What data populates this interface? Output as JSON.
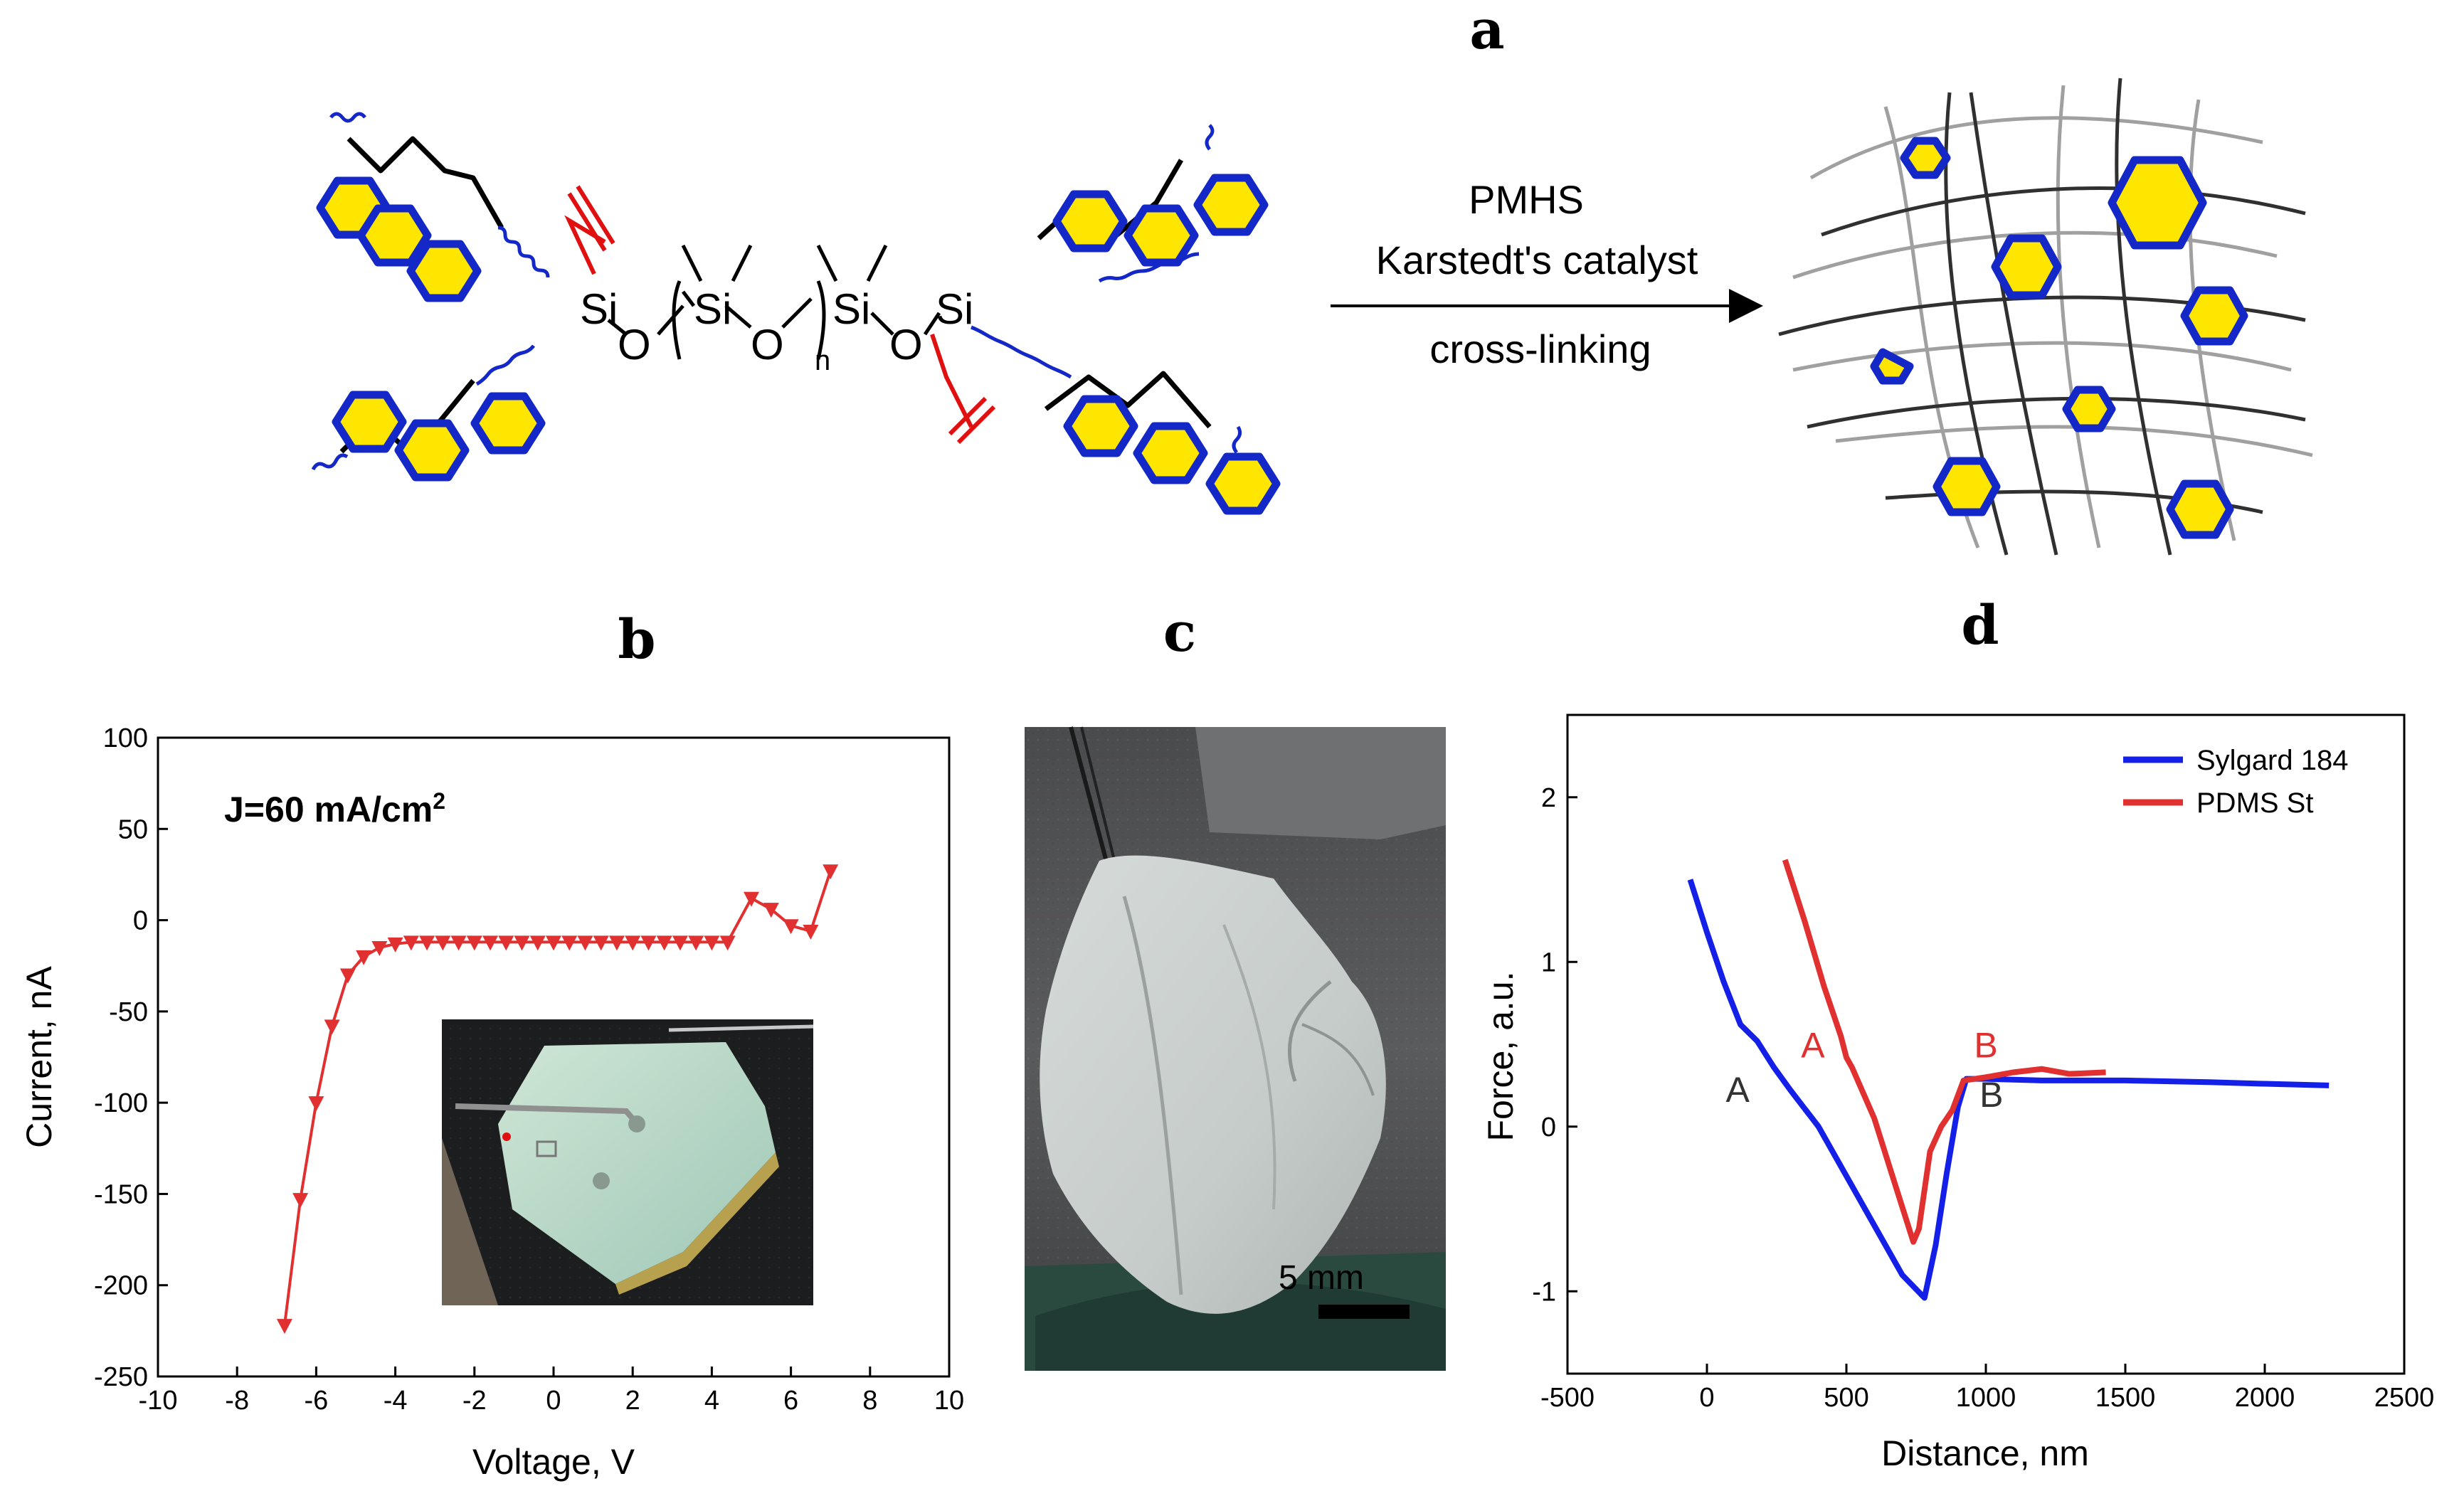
{
  "panels": {
    "a": "a",
    "b": "b",
    "c": "c",
    "d": "d"
  },
  "reaction": {
    "reagent": "PMHS",
    "catalyst": "Karstedt's catalyst",
    "process": "cross-linking",
    "atoms": {
      "si": "Si",
      "o": "O",
      "n": "n"
    }
  },
  "colors": {
    "ring_stroke": "#1428c8",
    "ring_fill": "#ffe600",
    "vinyl": "#e01010",
    "red_series": "#e03030",
    "blue_series": "#1420e8"
  },
  "photo_c": {
    "scale_label": "5 mm"
  },
  "chart_data": [
    {
      "panel": "b",
      "type": "line",
      "xlabel": "Voltage, V",
      "ylabel": "Current, nA",
      "annotation": {
        "prefix": "J=60 mA/cm",
        "sup": "2"
      },
      "xlim": [
        -10,
        10
      ],
      "ylim": [
        -250,
        100
      ],
      "xticks": [
        -10,
        -8,
        -6,
        -4,
        -2,
        0,
        2,
        4,
        6,
        8,
        10
      ],
      "yticks": [
        100,
        50,
        0,
        -50,
        -100,
        -150,
        -200,
        -250
      ],
      "marker": "triangle-down",
      "x": [
        -6.8,
        -6.4,
        -6.0,
        -5.6,
        -5.2,
        -4.8,
        -4.4,
        -4.0,
        -3.6,
        -3.2,
        -2.8,
        -2.4,
        -2.0,
        -1.6,
        -1.2,
        -0.8,
        -0.4,
        0.0,
        0.4,
        0.8,
        1.2,
        1.6,
        2.0,
        2.4,
        2.8,
        3.2,
        3.6,
        4.0,
        4.4,
        5.0,
        5.5,
        6.0,
        6.5,
        7.0
      ],
      "y": [
        -222,
        -153,
        -100,
        -58,
        -30,
        -20,
        -15,
        -13,
        -12,
        -12,
        -12,
        -12,
        -12,
        -12,
        -12,
        -12,
        -12,
        -12,
        -12,
        -12,
        -12,
        -12,
        -12,
        -12,
        -12,
        -12,
        -12,
        -12,
        -12,
        12,
        6,
        -3,
        -6,
        27
      ]
    },
    {
      "panel": "d",
      "type": "line",
      "xlabel": "Distance, nm",
      "ylabel": "Force, a.u.",
      "xlim": [
        -500,
        2500
      ],
      "ylim": [
        -1.5,
        2.5
      ],
      "xticks": [
        -500,
        0,
        500,
        1000,
        1500,
        2000,
        2500
      ],
      "yticks": [
        2,
        1,
        0,
        -1
      ],
      "legend_position": "top-right",
      "series": [
        {
          "name": "Sylgard 184",
          "x": [
            -60,
            0,
            60,
            120,
            180,
            240,
            300,
            400,
            500,
            600,
            700,
            780,
            820,
            860,
            900,
            930,
            1000,
            1200,
            1500,
            1800,
            2000,
            2230
          ],
          "y": [
            1.5,
            1.18,
            0.88,
            0.62,
            0.52,
            0.36,
            0.22,
            0.0,
            -0.3,
            -0.6,
            -0.9,
            -1.04,
            -0.72,
            -0.28,
            0.12,
            0.29,
            0.29,
            0.28,
            0.28,
            0.27,
            0.26,
            0.25
          ],
          "labels": [
            {
              "text": "A",
              "x": 110,
              "y": 0.15
            },
            {
              "text": "B",
              "x": 1020,
              "y": 0.12
            }
          ]
        },
        {
          "name": "PDMS St",
          "x": [
            280,
            350,
            420,
            480,
            500,
            520,
            600,
            680,
            740,
            760,
            800,
            840,
            880,
            920,
            1000,
            1100,
            1200,
            1300,
            1430
          ],
          "y": [
            1.62,
            1.25,
            0.85,
            0.55,
            0.42,
            0.36,
            0.05,
            -0.38,
            -0.7,
            -0.62,
            -0.15,
            0.0,
            0.1,
            0.28,
            0.3,
            0.33,
            0.35,
            0.32,
            0.33
          ],
          "labels": [
            {
              "text": "A",
              "x": 380,
              "y": 0.42
            },
            {
              "text": "B",
              "x": 1000,
              "y": 0.42
            }
          ]
        }
      ]
    }
  ]
}
